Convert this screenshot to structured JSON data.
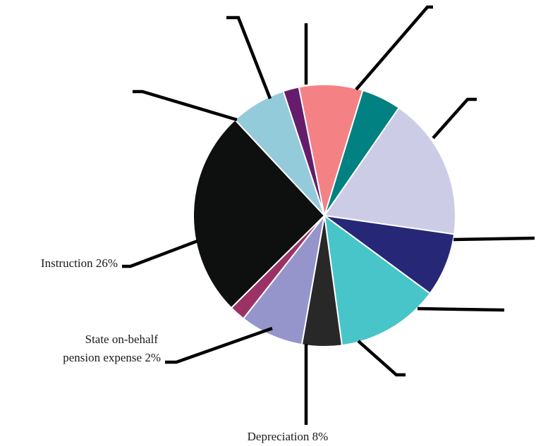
{
  "chart_data": {
    "type": "pie",
    "title": "",
    "slices": [
      {
        "label": "",
        "value": 5,
        "color": "#018182"
      },
      {
        "label": "",
        "value": 18,
        "color": "#cccce6"
      },
      {
        "label": "",
        "value": 8,
        "color": "#262776"
      },
      {
        "label": "",
        "value": 13,
        "color": "#48c5c9"
      },
      {
        "label": "",
        "value": 5,
        "color": "#282828"
      },
      {
        "label": "Depreciation",
        "value": 8,
        "display": "Depreciation 8%",
        "color": "#9595cc"
      },
      {
        "label": "State on-behalf pension expense",
        "value": 2,
        "display": [
          "State on-behalf",
          "pension expense 2%"
        ],
        "color": "#9b3266"
      },
      {
        "label": "Instruction",
        "value": 26,
        "display": "Instruction 26%",
        "color": "#0e0f0f"
      },
      {
        "label": "",
        "value": 7,
        "color": "#94cbdb"
      },
      {
        "label": "",
        "value": 2,
        "color": "#651d6b"
      },
      {
        "label": "",
        "value": 8,
        "color": "#f48284"
      }
    ],
    "legend": "none"
  }
}
